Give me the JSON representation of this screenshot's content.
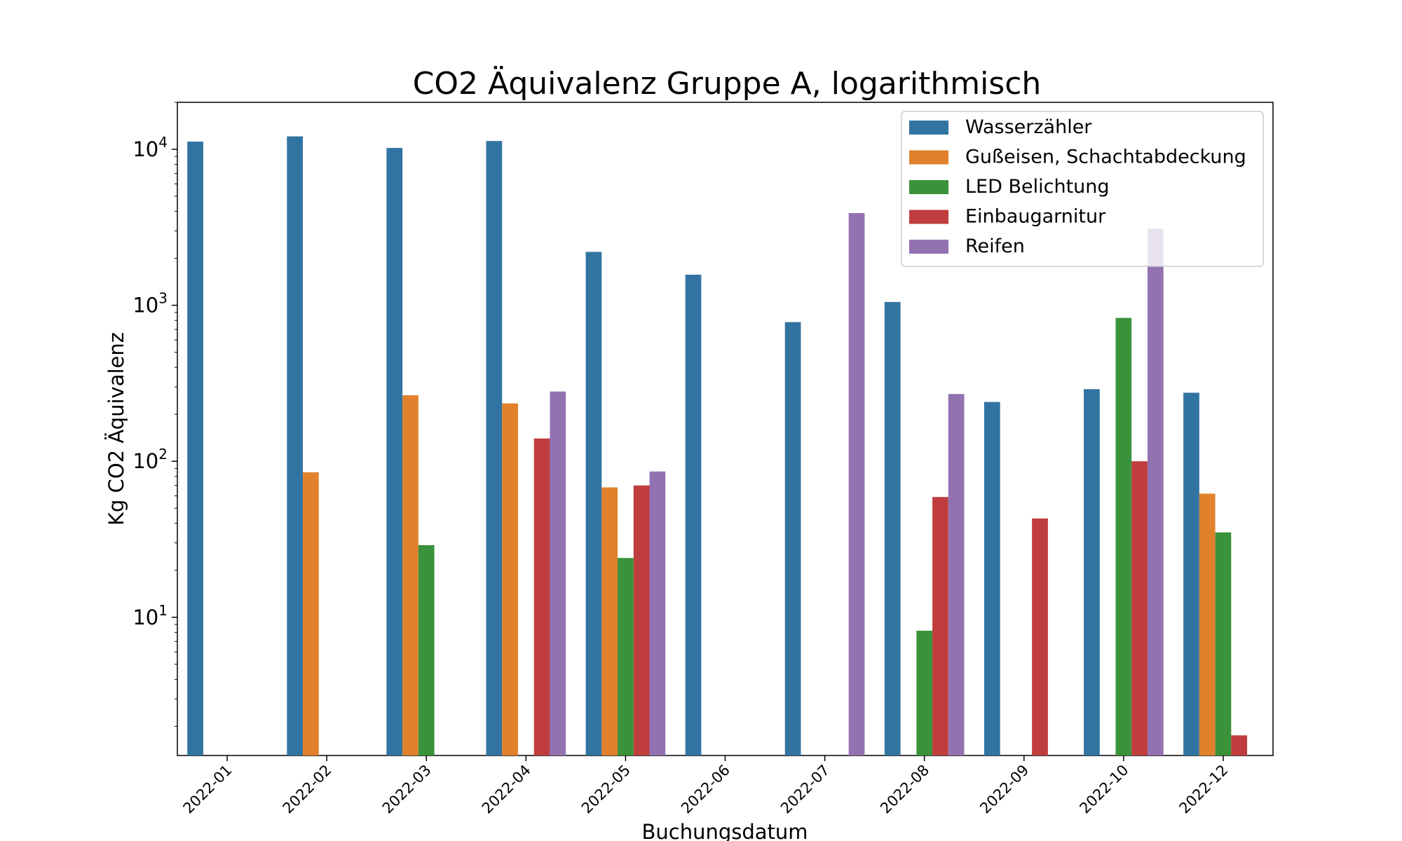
{
  "chart_data": {
    "type": "bar",
    "title": "CO2 Äquivalenz Gruppe A, logarithmisch",
    "xlabel": "Buchungsdatum",
    "ylabel": "Kg CO2 Äquivalenz",
    "yscale": "log",
    "ylim": [
      1.3,
      20000
    ],
    "grid": false,
    "legend_position": "top-right",
    "categories": [
      "2022-01",
      "2022-02",
      "2022-03",
      "2022-04",
      "2022-05",
      "2022-06",
      "2022-07",
      "2022-08",
      "2022-09",
      "2022-10",
      "2022-12"
    ],
    "yticks": [
      {
        "base": "10",
        "exp": "1",
        "value": 10
      },
      {
        "base": "10",
        "exp": "2",
        "value": 100
      },
      {
        "base": "10",
        "exp": "3",
        "value": 1000
      },
      {
        "base": "10",
        "exp": "4",
        "value": 10000
      }
    ],
    "series": [
      {
        "name": "Wasserzähler",
        "color": "#3274a1",
        "values": [
          11200,
          12100,
          10200,
          11300,
          2200,
          1570,
          780,
          1050,
          240,
          290,
          275
        ]
      },
      {
        "name": "Gußeisen, Schachtabdeckung",
        "color": "#e1812c",
        "values": [
          null,
          85,
          265,
          235,
          68,
          null,
          null,
          null,
          null,
          null,
          62
        ]
      },
      {
        "name": "LED Belichtung",
        "color": "#3a923a",
        "values": [
          null,
          null,
          29,
          null,
          24,
          null,
          null,
          8.2,
          null,
          830,
          35
        ]
      },
      {
        "name": "Einbaugarnitur",
        "color": "#c03d3e",
        "values": [
          null,
          null,
          null,
          140,
          70,
          null,
          null,
          59,
          43,
          100,
          1.75
        ]
      },
      {
        "name": "Reifen",
        "color": "#9372b2",
        "values": [
          null,
          null,
          null,
          280,
          86,
          null,
          3900,
          270,
          null,
          3100,
          null
        ]
      }
    ]
  }
}
